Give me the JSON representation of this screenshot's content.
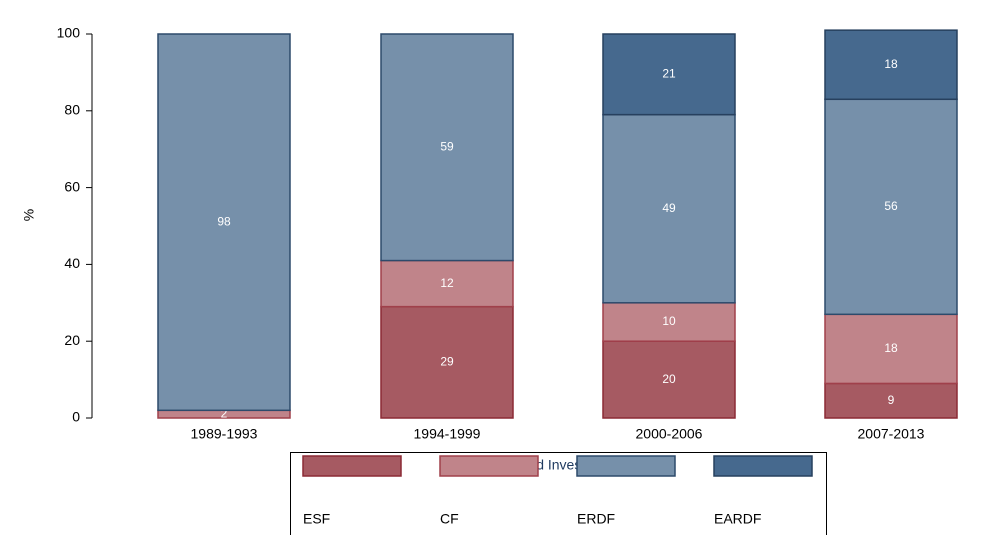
{
  "chart_data": {
    "type": "stacked_bar",
    "y_label": "%",
    "legend_title": "Structural and Investment Funds",
    "categories": [
      "1989-1993",
      "1994-1999",
      "2000-2006",
      "2007-2013"
    ],
    "series": [
      {
        "name": "ESF",
        "color": "#a65a62",
        "stroke": "#8b2a35",
        "values": [
          null,
          29,
          20,
          9
        ]
      },
      {
        "name": "CF",
        "color": "#c0848a",
        "stroke": "#a0404b",
        "values": [
          2,
          12,
          10,
          18
        ]
      },
      {
        "name": "ERDF",
        "color": "#7690aa",
        "stroke": "#2d4a6b",
        "values": [
          98,
          59,
          49,
          56
        ]
      },
      {
        "name": "EARDF",
        "color": "#46698e",
        "stroke": "#27405e",
        "values": [
          null,
          null,
          21,
          18
        ]
      }
    ],
    "ylim": [
      0,
      100
    ],
    "yticks": [
      0,
      20,
      40,
      60,
      80,
      100
    ],
    "grid": false,
    "legend": "bottom"
  }
}
